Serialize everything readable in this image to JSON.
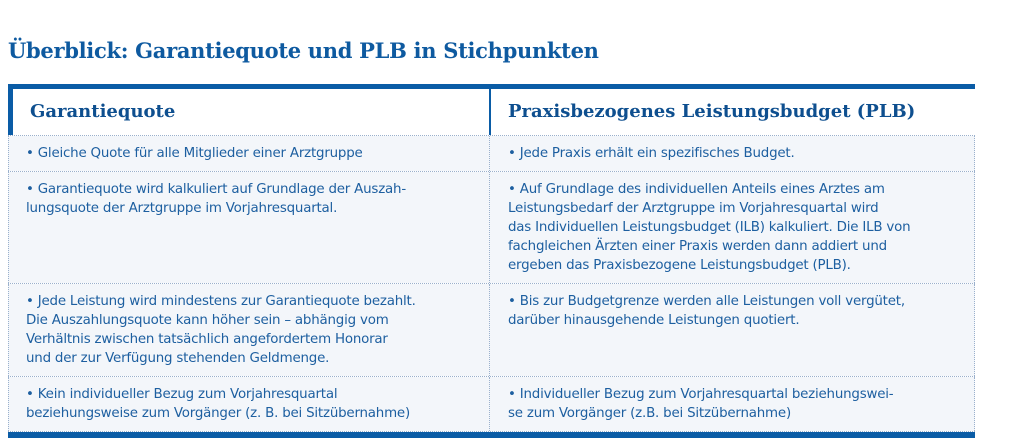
{
  "title": "Überblick: Garantiequote und PLB in Stichpunkten",
  "columns": [
    "Garantiequote",
    "Praxisbezogenes Leistungsbudget (PLB)"
  ],
  "rows": [
    {
      "left": [
        "• Gleiche Quote für alle Mitglieder einer Arztgruppe"
      ],
      "right": [
        "• Jede Praxis erhält ein spezifisches Budget."
      ]
    },
    {
      "left": [
        "• Garantiequote wird kalkuliert auf Grundlage der Auszah-",
        "lungsquote der Arztgruppe im Vorjahresquartal."
      ],
      "right": [
        "• Auf Grundlage des individuellen Anteils eines Arztes am",
        "Leistungsbedarf der Arztgruppe im Vorjahresquartal wird",
        "das Individuellen Leistungsbudget (ILB) kalkuliert. Die ILB von",
        "fachgleichen Ärzten einer Praxis werden dann addiert und",
        "ergeben das Praxisbezogene Leistungsbudget (PLB)."
      ]
    },
    {
      "left": [
        "• Jede Leistung wird mindestens zur Garantiequote bezahlt.",
        "Die Auszahlungsquote kann höher sein – abhängig vom",
        "Verhältnis zwischen tatsächlich angefordertem Honorar",
        "und der zur Verfügung stehenden Geldmenge."
      ],
      "right": [
        "• Bis zur Budgetgrenze werden alle Leistungen voll vergütet,",
        "darüber hinausgehende Leistungen quotiert."
      ]
    },
    {
      "left": [
        "• Kein individueller Bezug zum Vorjahresquartal",
        "beziehungsweise zum Vorgänger (z. B. bei Sitzübernahme)"
      ],
      "right": [
        "• Individueller Bezug zum Vorjahresquartal beziehungswei-",
        "se zum Vorgänger (z.B. bei Sitzübernahme)"
      ]
    }
  ],
  "colors": {
    "accent": "#0a5ca6",
    "text": "#1d5fa0",
    "row_bg": "#f3f6fa"
  }
}
